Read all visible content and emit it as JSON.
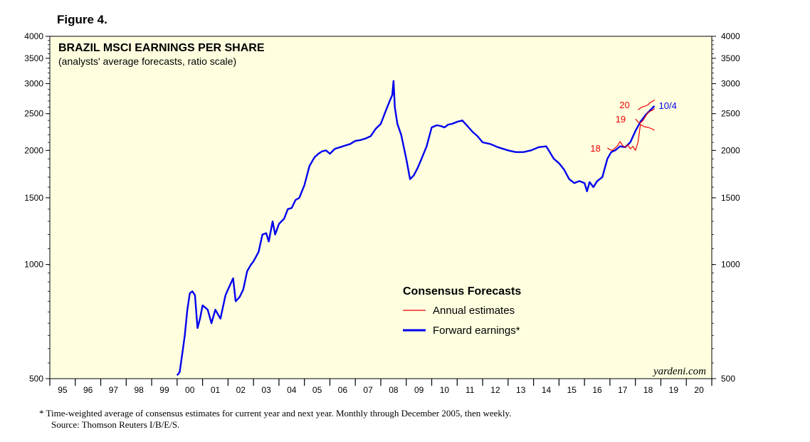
{
  "figure_label": "Figure 4.",
  "footnote": {
    "line1": "*  Time-weighted average of consensus estimates for current year and next year. Monthly through December 2005, then weekly.",
    "line2": "Source: Thomson Reuters I/B/E/S."
  },
  "colors": {
    "plot_bg": "#ffffe0",
    "forward": "#0000ee",
    "annual": "#ee0000"
  },
  "chart_data": {
    "type": "line",
    "title": "BRAZIL MSCI EARNINGS PER SHARE",
    "subtitle": "(analysts' average forecasts, ratio scale)",
    "y_scale": "log",
    "ylim": [
      500,
      4000
    ],
    "xlim": [
      1995,
      2021
    ],
    "y_ticks": [
      500,
      1000,
      1500,
      2000,
      2500,
      3000,
      3500,
      4000
    ],
    "y_tick_labels": [
      "500",
      "1000",
      "1500",
      "2000",
      "2500",
      "3000",
      "3500",
      "4000"
    ],
    "x_tick_labels": [
      "95",
      "96",
      "97",
      "98",
      "99",
      "00",
      "01",
      "02",
      "03",
      "04",
      "05",
      "06",
      "07",
      "08",
      "09",
      "10",
      "11",
      "12",
      "13",
      "14",
      "15",
      "16",
      "17",
      "18",
      "19",
      "20"
    ],
    "watermark": "yardeni.com",
    "legend": {
      "title": "Consensus Forecasts",
      "items": [
        "Annual estimates",
        "Forward earnings*"
      ]
    },
    "series": [
      {
        "name": "Forward earnings*",
        "end_label": "10/4",
        "x": [
          2000.0,
          2000.1,
          2000.2,
          2000.3,
          2000.4,
          2000.5,
          2000.6,
          2000.7,
          2000.8,
          2000.9,
          2001.0,
          2001.2,
          2001.35,
          2001.5,
          2001.7,
          2001.9,
          2002.0,
          2002.2,
          2002.3,
          2002.45,
          2002.6,
          2002.75,
          2002.9,
          2003.0,
          2003.2,
          2003.35,
          2003.5,
          2003.6,
          2003.75,
          2003.85,
          2004.0,
          2004.2,
          2004.35,
          2004.5,
          2004.65,
          2004.8,
          2005.0,
          2005.2,
          2005.4,
          2005.55,
          2005.7,
          2005.85,
          2006.0,
          2006.2,
          2006.4,
          2006.6,
          2006.8,
          2007.0,
          2007.2,
          2007.4,
          2007.6,
          2007.8,
          2008.0,
          2008.2,
          2008.35,
          2008.45,
          2008.5,
          2008.55,
          2008.65,
          2008.8,
          2009.0,
          2009.15,
          2009.3,
          2009.45,
          2009.6,
          2009.8,
          2010.0,
          2010.2,
          2010.35,
          2010.5,
          2010.65,
          2010.8,
          2011.0,
          2011.2,
          2011.4,
          2011.6,
          2011.8,
          2012.0,
          2012.3,
          2012.6,
          2013.0,
          2013.3,
          2013.6,
          2013.9,
          2014.2,
          2014.5,
          2014.8,
          2015.0,
          2015.2,
          2015.4,
          2015.6,
          2015.8,
          2016.0,
          2016.1,
          2016.2,
          2016.35,
          2016.5,
          2016.7,
          2016.9,
          2017.05,
          2017.2,
          2017.4,
          2017.6,
          2017.8,
          2018.0,
          2018.2,
          2018.4,
          2018.6,
          2018.75
        ],
        "values": [
          510,
          520,
          580,
          650,
          760,
          840,
          850,
          830,
          680,
          720,
          780,
          760,
          700,
          760,
          720,
          830,
          860,
          920,
          800,
          820,
          860,
          960,
          1000,
          1020,
          1080,
          1200,
          1210,
          1150,
          1300,
          1200,
          1280,
          1320,
          1400,
          1410,
          1480,
          1500,
          1620,
          1820,
          1920,
          1960,
          1990,
          2000,
          1960,
          2020,
          2040,
          2060,
          2080,
          2120,
          2130,
          2150,
          2180,
          2280,
          2350,
          2550,
          2700,
          2800,
          3050,
          2600,
          2350,
          2200,
          1900,
          1680,
          1720,
          1800,
          1900,
          2050,
          2300,
          2330,
          2320,
          2300,
          2340,
          2350,
          2380,
          2400,
          2320,
          2240,
          2180,
          2100,
          2080,
          2040,
          2000,
          1980,
          1980,
          2000,
          2040,
          2050,
          1900,
          1850,
          1780,
          1680,
          1640,
          1660,
          1640,
          1560,
          1650,
          1600,
          1660,
          1700,
          1900,
          1980,
          2000,
          2050,
          2040,
          2100,
          2250,
          2380,
          2480,
          2560,
          2620
        ]
      },
      {
        "name": "Annual estimates 18",
        "label": "18",
        "x": [
          2016.9,
          2017.0,
          2017.1,
          2017.2,
          2017.3,
          2017.4,
          2017.5,
          2017.6,
          2017.7,
          2017.8,
          2017.9,
          2018.0,
          2018.1,
          2018.2,
          2018.35,
          2018.5,
          2018.65,
          2018.75
        ],
        "values": [
          2030,
          2010,
          2000,
          2030,
          2060,
          2110,
          2060,
          2040,
          2070,
          2020,
          2050,
          2000,
          2100,
          2340,
          2310,
          2300,
          2280,
          2260
        ]
      },
      {
        "name": "Annual estimates 19",
        "label": "19",
        "x": [
          2018.0,
          2018.1,
          2018.2,
          2018.3,
          2018.4,
          2018.5,
          2018.6,
          2018.7,
          2018.75
        ],
        "values": [
          2420,
          2380,
          2360,
          2400,
          2460,
          2520,
          2540,
          2560,
          2580
        ]
      },
      {
        "name": "Annual estimates 20",
        "label": "20",
        "x": [
          2018.1,
          2018.25,
          2018.4,
          2018.5,
          2018.6,
          2018.7,
          2018.75
        ],
        "values": [
          2560,
          2600,
          2620,
          2640,
          2680,
          2700,
          2720
        ]
      }
    ]
  }
}
